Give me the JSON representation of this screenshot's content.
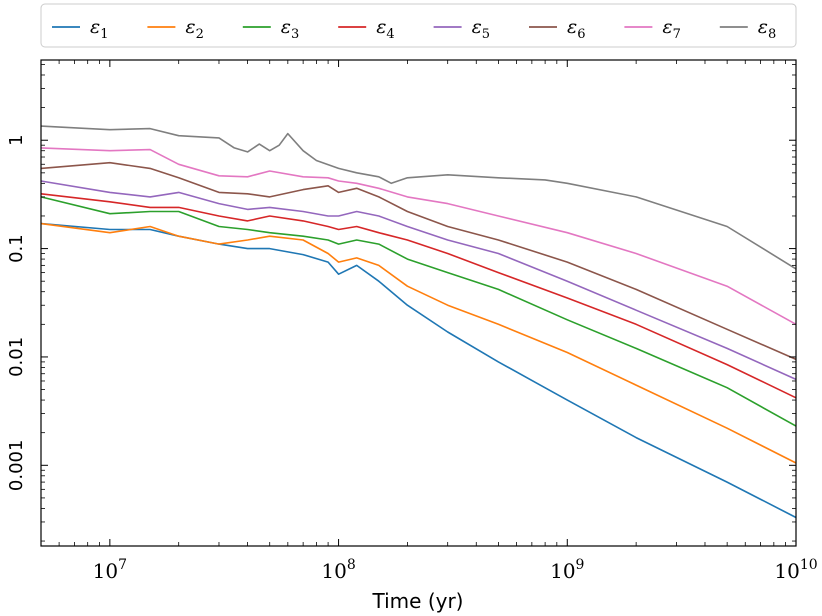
{
  "chart_data": {
    "type": "line",
    "title": "",
    "xlabel": "Time (yr)",
    "ylabel": "",
    "xscale": "log",
    "yscale": "log",
    "xlim": [
      5000000,
      10000000000
    ],
    "ylim": [
      0.00018,
      5.5
    ],
    "x_ticks": [
      {
        "value": 10000000,
        "base": "10",
        "exp": "7"
      },
      {
        "value": 100000000,
        "base": "10",
        "exp": "8"
      },
      {
        "value": 1000000000,
        "base": "10",
        "exp": "9"
      },
      {
        "value": 10000000000,
        "base": "10",
        "exp": "10"
      }
    ],
    "y_ticks": [
      {
        "value": 1,
        "label": "1"
      },
      {
        "value": 0.1,
        "label": "0.1"
      },
      {
        "value": 0.01,
        "label": "0.01"
      },
      {
        "value": 0.001,
        "label": "0.001"
      }
    ],
    "grid": false,
    "legend_placement": "top, single row above plot",
    "series": [
      {
        "name": "ε1",
        "legend_base": "ε",
        "legend_sub": "1",
        "color": "#1f77b4",
        "x": [
          5000000.0,
          10000000.0,
          15000000.0,
          20000000.0,
          30000000.0,
          40000000.0,
          50000000.0,
          70000000.0,
          90000000.0,
          100000000.0,
          120000000.0,
          150000000.0,
          200000000.0,
          300000000.0,
          500000000.0,
          1000000000.0,
          2000000000.0,
          5000000000.0,
          10000000000.0
        ],
        "y": [
          0.17,
          0.15,
          0.15,
          0.13,
          0.11,
          0.1,
          0.1,
          0.088,
          0.075,
          0.058,
          0.07,
          0.05,
          0.03,
          0.017,
          0.009,
          0.004,
          0.0018,
          0.0007,
          0.00033
        ]
      },
      {
        "name": "ε2",
        "legend_base": "ε",
        "legend_sub": "2",
        "color": "#ff7f0e",
        "x": [
          5000000.0,
          10000000.0,
          15000000.0,
          20000000.0,
          30000000.0,
          40000000.0,
          50000000.0,
          70000000.0,
          90000000.0,
          100000000.0,
          120000000.0,
          150000000.0,
          200000000.0,
          300000000.0,
          500000000.0,
          1000000000.0,
          2000000000.0,
          5000000000.0,
          10000000000.0
        ],
        "y": [
          0.17,
          0.14,
          0.16,
          0.13,
          0.11,
          0.12,
          0.13,
          0.12,
          0.09,
          0.075,
          0.082,
          0.07,
          0.045,
          0.03,
          0.02,
          0.011,
          0.0055,
          0.0022,
          0.00105
        ]
      },
      {
        "name": "ε3",
        "legend_base": "ε",
        "legend_sub": "3",
        "color": "#2ca02c",
        "x": [
          5000000.0,
          10000000.0,
          15000000.0,
          20000000.0,
          30000000.0,
          40000000.0,
          50000000.0,
          70000000.0,
          90000000.0,
          100000000.0,
          120000000.0,
          150000000.0,
          200000000.0,
          300000000.0,
          500000000.0,
          1000000000.0,
          2000000000.0,
          5000000000.0,
          10000000000.0
        ],
        "y": [
          0.3,
          0.21,
          0.22,
          0.22,
          0.16,
          0.15,
          0.14,
          0.13,
          0.12,
          0.11,
          0.12,
          0.11,
          0.08,
          0.06,
          0.042,
          0.022,
          0.012,
          0.0052,
          0.0023
        ]
      },
      {
        "name": "ε4",
        "legend_base": "ε",
        "legend_sub": "4",
        "color": "#d62728",
        "x": [
          5000000.0,
          10000000.0,
          15000000.0,
          20000000.0,
          30000000.0,
          40000000.0,
          50000000.0,
          70000000.0,
          90000000.0,
          100000000.0,
          120000000.0,
          150000000.0,
          200000000.0,
          300000000.0,
          500000000.0,
          1000000000.0,
          2000000000.0,
          5000000000.0,
          10000000000.0
        ],
        "y": [
          0.32,
          0.27,
          0.24,
          0.24,
          0.2,
          0.18,
          0.2,
          0.18,
          0.16,
          0.15,
          0.16,
          0.14,
          0.12,
          0.09,
          0.06,
          0.035,
          0.02,
          0.0085,
          0.0042
        ]
      },
      {
        "name": "ε5",
        "legend_base": "ε",
        "legend_sub": "5",
        "color": "#9467bd",
        "x": [
          5000000.0,
          10000000.0,
          15000000.0,
          20000000.0,
          30000000.0,
          40000000.0,
          50000000.0,
          70000000.0,
          90000000.0,
          100000000.0,
          120000000.0,
          150000000.0,
          200000000.0,
          300000000.0,
          500000000.0,
          1000000000.0,
          2000000000.0,
          5000000000.0,
          10000000000.0
        ],
        "y": [
          0.42,
          0.33,
          0.3,
          0.33,
          0.26,
          0.23,
          0.24,
          0.22,
          0.2,
          0.2,
          0.22,
          0.2,
          0.16,
          0.12,
          0.09,
          0.05,
          0.027,
          0.012,
          0.0062
        ]
      },
      {
        "name": "ε6",
        "legend_base": "ε",
        "legend_sub": "6",
        "color": "#8c564b",
        "x": [
          5000000.0,
          10000000.0,
          15000000.0,
          20000000.0,
          30000000.0,
          40000000.0,
          50000000.0,
          70000000.0,
          90000000.0,
          100000000.0,
          120000000.0,
          150000000.0,
          200000000.0,
          300000000.0,
          500000000.0,
          1000000000.0,
          2000000000.0,
          5000000000.0,
          10000000000.0
        ],
        "y": [
          0.55,
          0.62,
          0.55,
          0.45,
          0.33,
          0.32,
          0.3,
          0.35,
          0.38,
          0.33,
          0.36,
          0.3,
          0.22,
          0.16,
          0.12,
          0.075,
          0.042,
          0.018,
          0.0095
        ]
      },
      {
        "name": "ε7",
        "legend_base": "ε",
        "legend_sub": "7",
        "color": "#e377c2",
        "x": [
          5000000.0,
          10000000.0,
          15000000.0,
          20000000.0,
          30000000.0,
          40000000.0,
          50000000.0,
          70000000.0,
          90000000.0,
          100000000.0,
          120000000.0,
          150000000.0,
          200000000.0,
          300000000.0,
          500000000.0,
          1000000000.0,
          2000000000.0,
          5000000000.0,
          10000000000.0
        ],
        "y": [
          0.85,
          0.8,
          0.82,
          0.6,
          0.47,
          0.46,
          0.52,
          0.46,
          0.45,
          0.42,
          0.4,
          0.36,
          0.3,
          0.26,
          0.2,
          0.14,
          0.09,
          0.045,
          0.02
        ]
      },
      {
        "name": "ε8",
        "legend_base": "ε",
        "legend_sub": "8",
        "color": "#7f7f7f",
        "x": [
          5000000.0,
          10000000.0,
          15000000.0,
          20000000.0,
          30000000.0,
          35000000.0,
          40000000.0,
          45000000.0,
          50000000.0,
          55000000.0,
          60000000.0,
          70000000.0,
          80000000.0,
          100000000.0,
          120000000.0,
          150000000.0,
          170000000.0,
          200000000.0,
          300000000.0,
          500000000.0,
          800000000.0,
          1000000000.0,
          2000000000.0,
          5000000000.0,
          10000000000.0
        ],
        "y": [
          1.35,
          1.25,
          1.28,
          1.1,
          1.05,
          0.85,
          0.78,
          0.92,
          0.8,
          0.9,
          1.15,
          0.8,
          0.65,
          0.55,
          0.5,
          0.46,
          0.4,
          0.45,
          0.48,
          0.45,
          0.43,
          0.4,
          0.3,
          0.16,
          0.065
        ]
      }
    ]
  }
}
